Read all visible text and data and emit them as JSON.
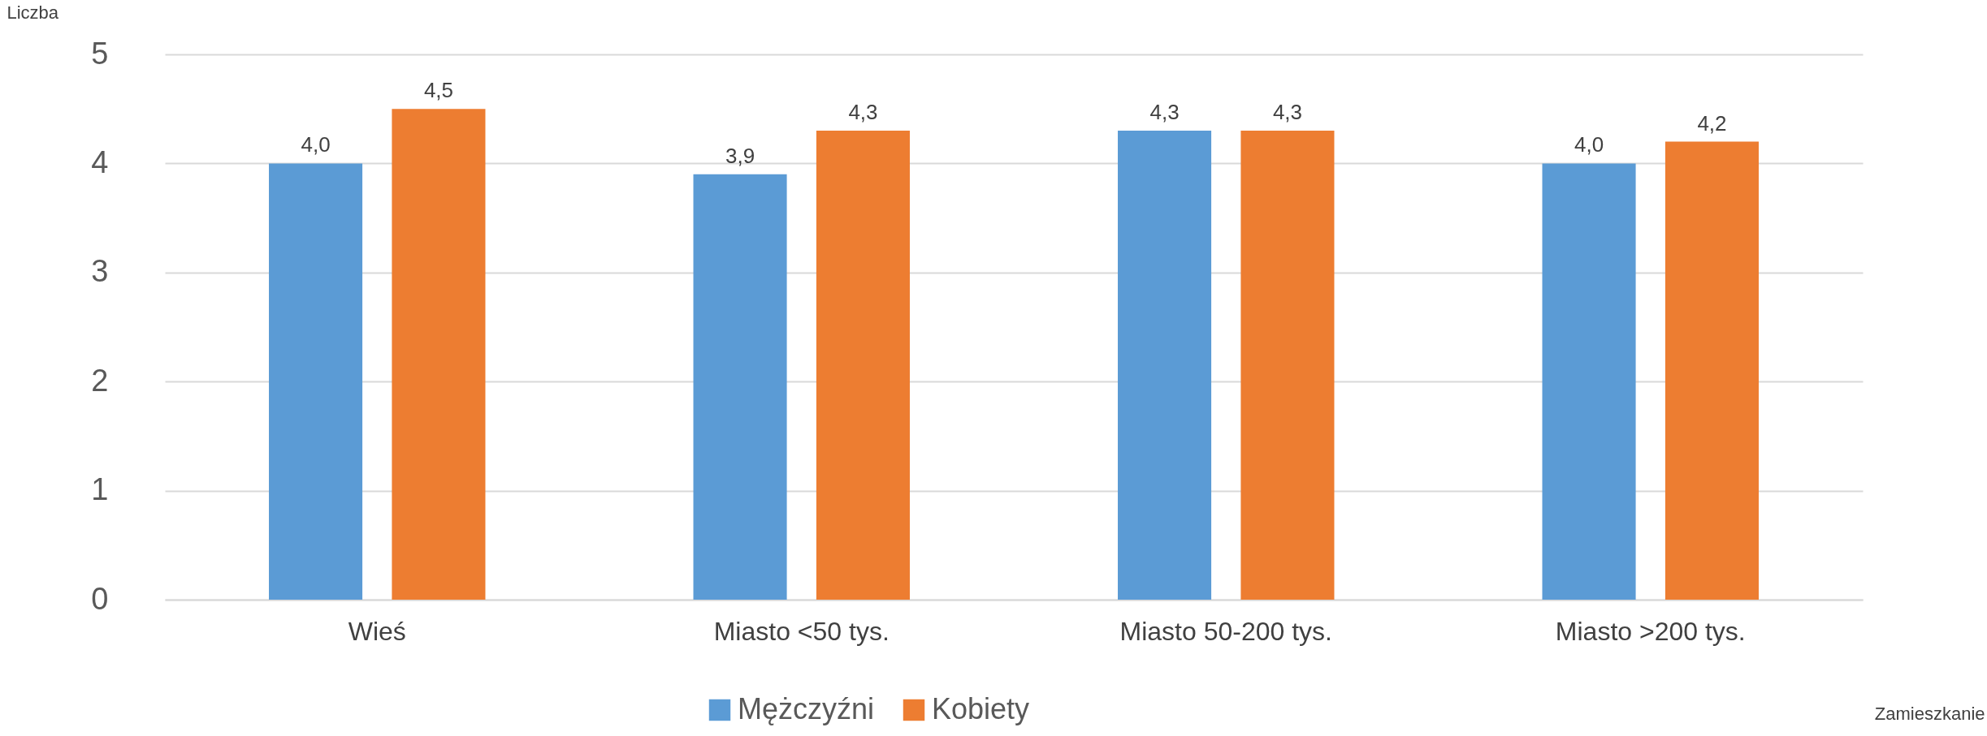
{
  "chart_data": {
    "type": "bar",
    "xlabel": "Zamieszkanie",
    "ylabel": "Liczba",
    "categories": [
      "Wieś",
      "Miasto <50 tys.",
      "Miasto 50-200 tys.",
      "Miasto >200 tys."
    ],
    "series": [
      {
        "name": "Mężczyźni",
        "color": "#5b9bd5",
        "values": [
          4.0,
          3.9,
          4.3,
          4.0
        ],
        "value_labels": [
          "4,0",
          "3,9",
          "4,3",
          "4,0"
        ]
      },
      {
        "name": "Kobiety",
        "color": "#ed7d31",
        "values": [
          4.5,
          4.3,
          4.3,
          4.2
        ],
        "value_labels": [
          "4,5",
          "4,3",
          "4,3",
          "4,2"
        ]
      }
    ],
    "ylim": [
      0,
      5
    ],
    "yticks": [
      0,
      1,
      2,
      3,
      4,
      5
    ],
    "grid": "y",
    "legend": "bottom"
  }
}
